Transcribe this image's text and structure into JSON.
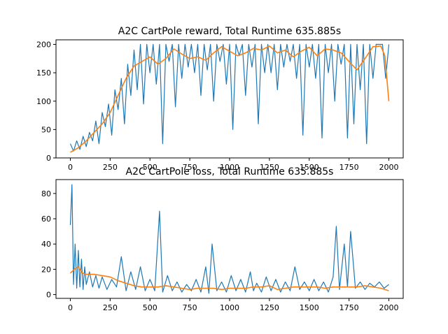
{
  "chart_data": [
    {
      "type": "line",
      "title": "A2C CartPole reward, Total Runtime 635.885s",
      "xlabel": "",
      "ylabel": "",
      "xlim": [
        -90,
        2090
      ],
      "ylim": [
        0,
        208
      ],
      "xticks": [
        0,
        250,
        500,
        750,
        1000,
        1250,
        1500,
        1750,
        2000
      ],
      "yticks": [
        0,
        50,
        100,
        150,
        200
      ],
      "grid": false,
      "series": [
        {
          "color": "#1f77b4",
          "style": "raw",
          "x": [
            0,
            20,
            40,
            60,
            80,
            100,
            120,
            140,
            160,
            180,
            200,
            220,
            240,
            260,
            280,
            300,
            320,
            340,
            360,
            380,
            400,
            420,
            440,
            460,
            480,
            500,
            520,
            540,
            560,
            580,
            600,
            620,
            640,
            660,
            680,
            700,
            720,
            740,
            760,
            780,
            800,
            820,
            840,
            860,
            880,
            900,
            920,
            940,
            960,
            980,
            1000,
            1020,
            1040,
            1060,
            1080,
            1100,
            1120,
            1140,
            1160,
            1180,
            1200,
            1220,
            1240,
            1260,
            1280,
            1300,
            1320,
            1340,
            1360,
            1380,
            1400,
            1420,
            1440,
            1460,
            1480,
            1500,
            1520,
            1540,
            1560,
            1580,
            1600,
            1620,
            1640,
            1660,
            1680,
            1700,
            1720,
            1740,
            1760,
            1780,
            1800,
            1820,
            1840,
            1860,
            1880,
            1900,
            1920,
            1940,
            1960,
            1980,
            2000
          ],
          "y": [
            25,
            12,
            30,
            15,
            38,
            20,
            45,
            30,
            65,
            25,
            80,
            55,
            95,
            40,
            120,
            85,
            140,
            60,
            165,
            110,
            190,
            120,
            200,
            95,
            200,
            150,
            200,
            130,
            200,
            25,
            200,
            170,
            200,
            90,
            200,
            140,
            200,
            160,
            200,
            150,
            200,
            110,
            200,
            155,
            200,
            100,
            200,
            170,
            200,
            130,
            200,
            50,
            200,
            180,
            200,
            110,
            200,
            160,
            200,
            60,
            200,
            150,
            200,
            150,
            200,
            120,
            200,
            160,
            200,
            170,
            200,
            140,
            200,
            40,
            200,
            160,
            200,
            140,
            200,
            35,
            200,
            150,
            200,
            100,
            200,
            165,
            200,
            35,
            200,
            60,
            200,
            120,
            200,
            25,
            200,
            140,
            200,
            200,
            200,
            140,
            200
          ]
        },
        {
          "color": "#ff7f0e",
          "style": "smoothed",
          "x": [
            0,
            50,
            100,
            150,
            200,
            250,
            300,
            350,
            400,
            450,
            500,
            550,
            600,
            650,
            700,
            750,
            800,
            850,
            900,
            950,
            1000,
            1050,
            1100,
            1150,
            1200,
            1250,
            1300,
            1350,
            1400,
            1450,
            1500,
            1550,
            1600,
            1650,
            1700,
            1750,
            1800,
            1850,
            1900,
            1950,
            1975,
            2000
          ],
          "y": [
            10,
            18,
            30,
            45,
            60,
            80,
            110,
            140,
            162,
            170,
            178,
            165,
            175,
            192,
            183,
            175,
            178,
            172,
            185,
            196,
            188,
            180,
            185,
            193,
            190,
            197,
            185,
            190,
            178,
            188,
            195,
            180,
            192,
            190,
            185,
            170,
            155,
            175,
            196,
            197,
            180,
            100
          ]
        }
      ]
    },
    {
      "type": "line",
      "title": "A2C CartPole loss, Total Runtime 635.885s",
      "xlabel": "",
      "ylabel": "",
      "xlim": [
        -90,
        2090
      ],
      "ylim": [
        -3,
        91
      ],
      "xticks": [
        0,
        250,
        500,
        750,
        1000,
        1250,
        1500,
        1750,
        2000
      ],
      "yticks": [
        0,
        20,
        40,
        60,
        80
      ],
      "grid": false,
      "series": [
        {
          "color": "#1f77b4",
          "style": "raw",
          "x": [
            0,
            10,
            20,
            30,
            40,
            50,
            60,
            70,
            80,
            90,
            100,
            120,
            140,
            160,
            180,
            200,
            230,
            260,
            290,
            320,
            350,
            380,
            410,
            440,
            470,
            500,
            530,
            560,
            580,
            610,
            640,
            670,
            700,
            730,
            760,
            790,
            820,
            850,
            870,
            890,
            920,
            950,
            980,
            1010,
            1040,
            1070,
            1100,
            1130,
            1150,
            1170,
            1200,
            1230,
            1260,
            1290,
            1320,
            1350,
            1380,
            1410,
            1440,
            1470,
            1500,
            1530,
            1560,
            1590,
            1620,
            1650,
            1670,
            1690,
            1720,
            1740,
            1760,
            1790,
            1820,
            1850,
            1880,
            1910,
            1940,
            1970,
            2000
          ],
          "y": [
            55,
            87,
            8,
            40,
            5,
            35,
            6,
            28,
            4,
            22,
            8,
            18,
            6,
            15,
            5,
            14,
            4,
            12,
            6,
            30,
            3,
            18,
            4,
            22,
            3,
            12,
            3,
            66,
            2,
            15,
            3,
            10,
            2,
            8,
            3,
            12,
            2,
            22,
            1,
            40,
            3,
            10,
            2,
            15,
            3,
            12,
            2,
            18,
            3,
            9,
            2,
            14,
            3,
            12,
            2,
            10,
            3,
            22,
            4,
            10,
            3,
            12,
            3,
            10,
            2,
            14,
            54,
            4,
            40,
            6,
            50,
            5,
            10,
            4,
            9,
            6,
            10,
            5,
            8
          ]
        },
        {
          "color": "#ff7f0e",
          "style": "smoothed",
          "x": [
            0,
            25,
            50,
            75,
            100,
            150,
            200,
            250,
            300,
            350,
            400,
            450,
            500,
            550,
            600,
            650,
            700,
            750,
            800,
            850,
            900,
            950,
            1000,
            1050,
            1100,
            1150,
            1200,
            1250,
            1300,
            1350,
            1400,
            1450,
            1500,
            1550,
            1600,
            1650,
            1700,
            1750,
            1800,
            1850,
            1900,
            1950,
            2000
          ],
          "y": [
            17,
            20,
            22,
            17,
            16,
            16,
            15,
            14,
            11,
            9,
            7,
            6,
            6,
            6,
            7,
            6,
            5,
            4,
            5,
            5,
            5,
            4,
            5,
            5,
            5,
            6,
            6,
            7,
            4,
            5,
            6,
            6,
            6,
            6,
            5,
            6,
            6,
            6,
            6,
            7,
            6,
            5,
            3
          ]
        }
      ]
    }
  ]
}
